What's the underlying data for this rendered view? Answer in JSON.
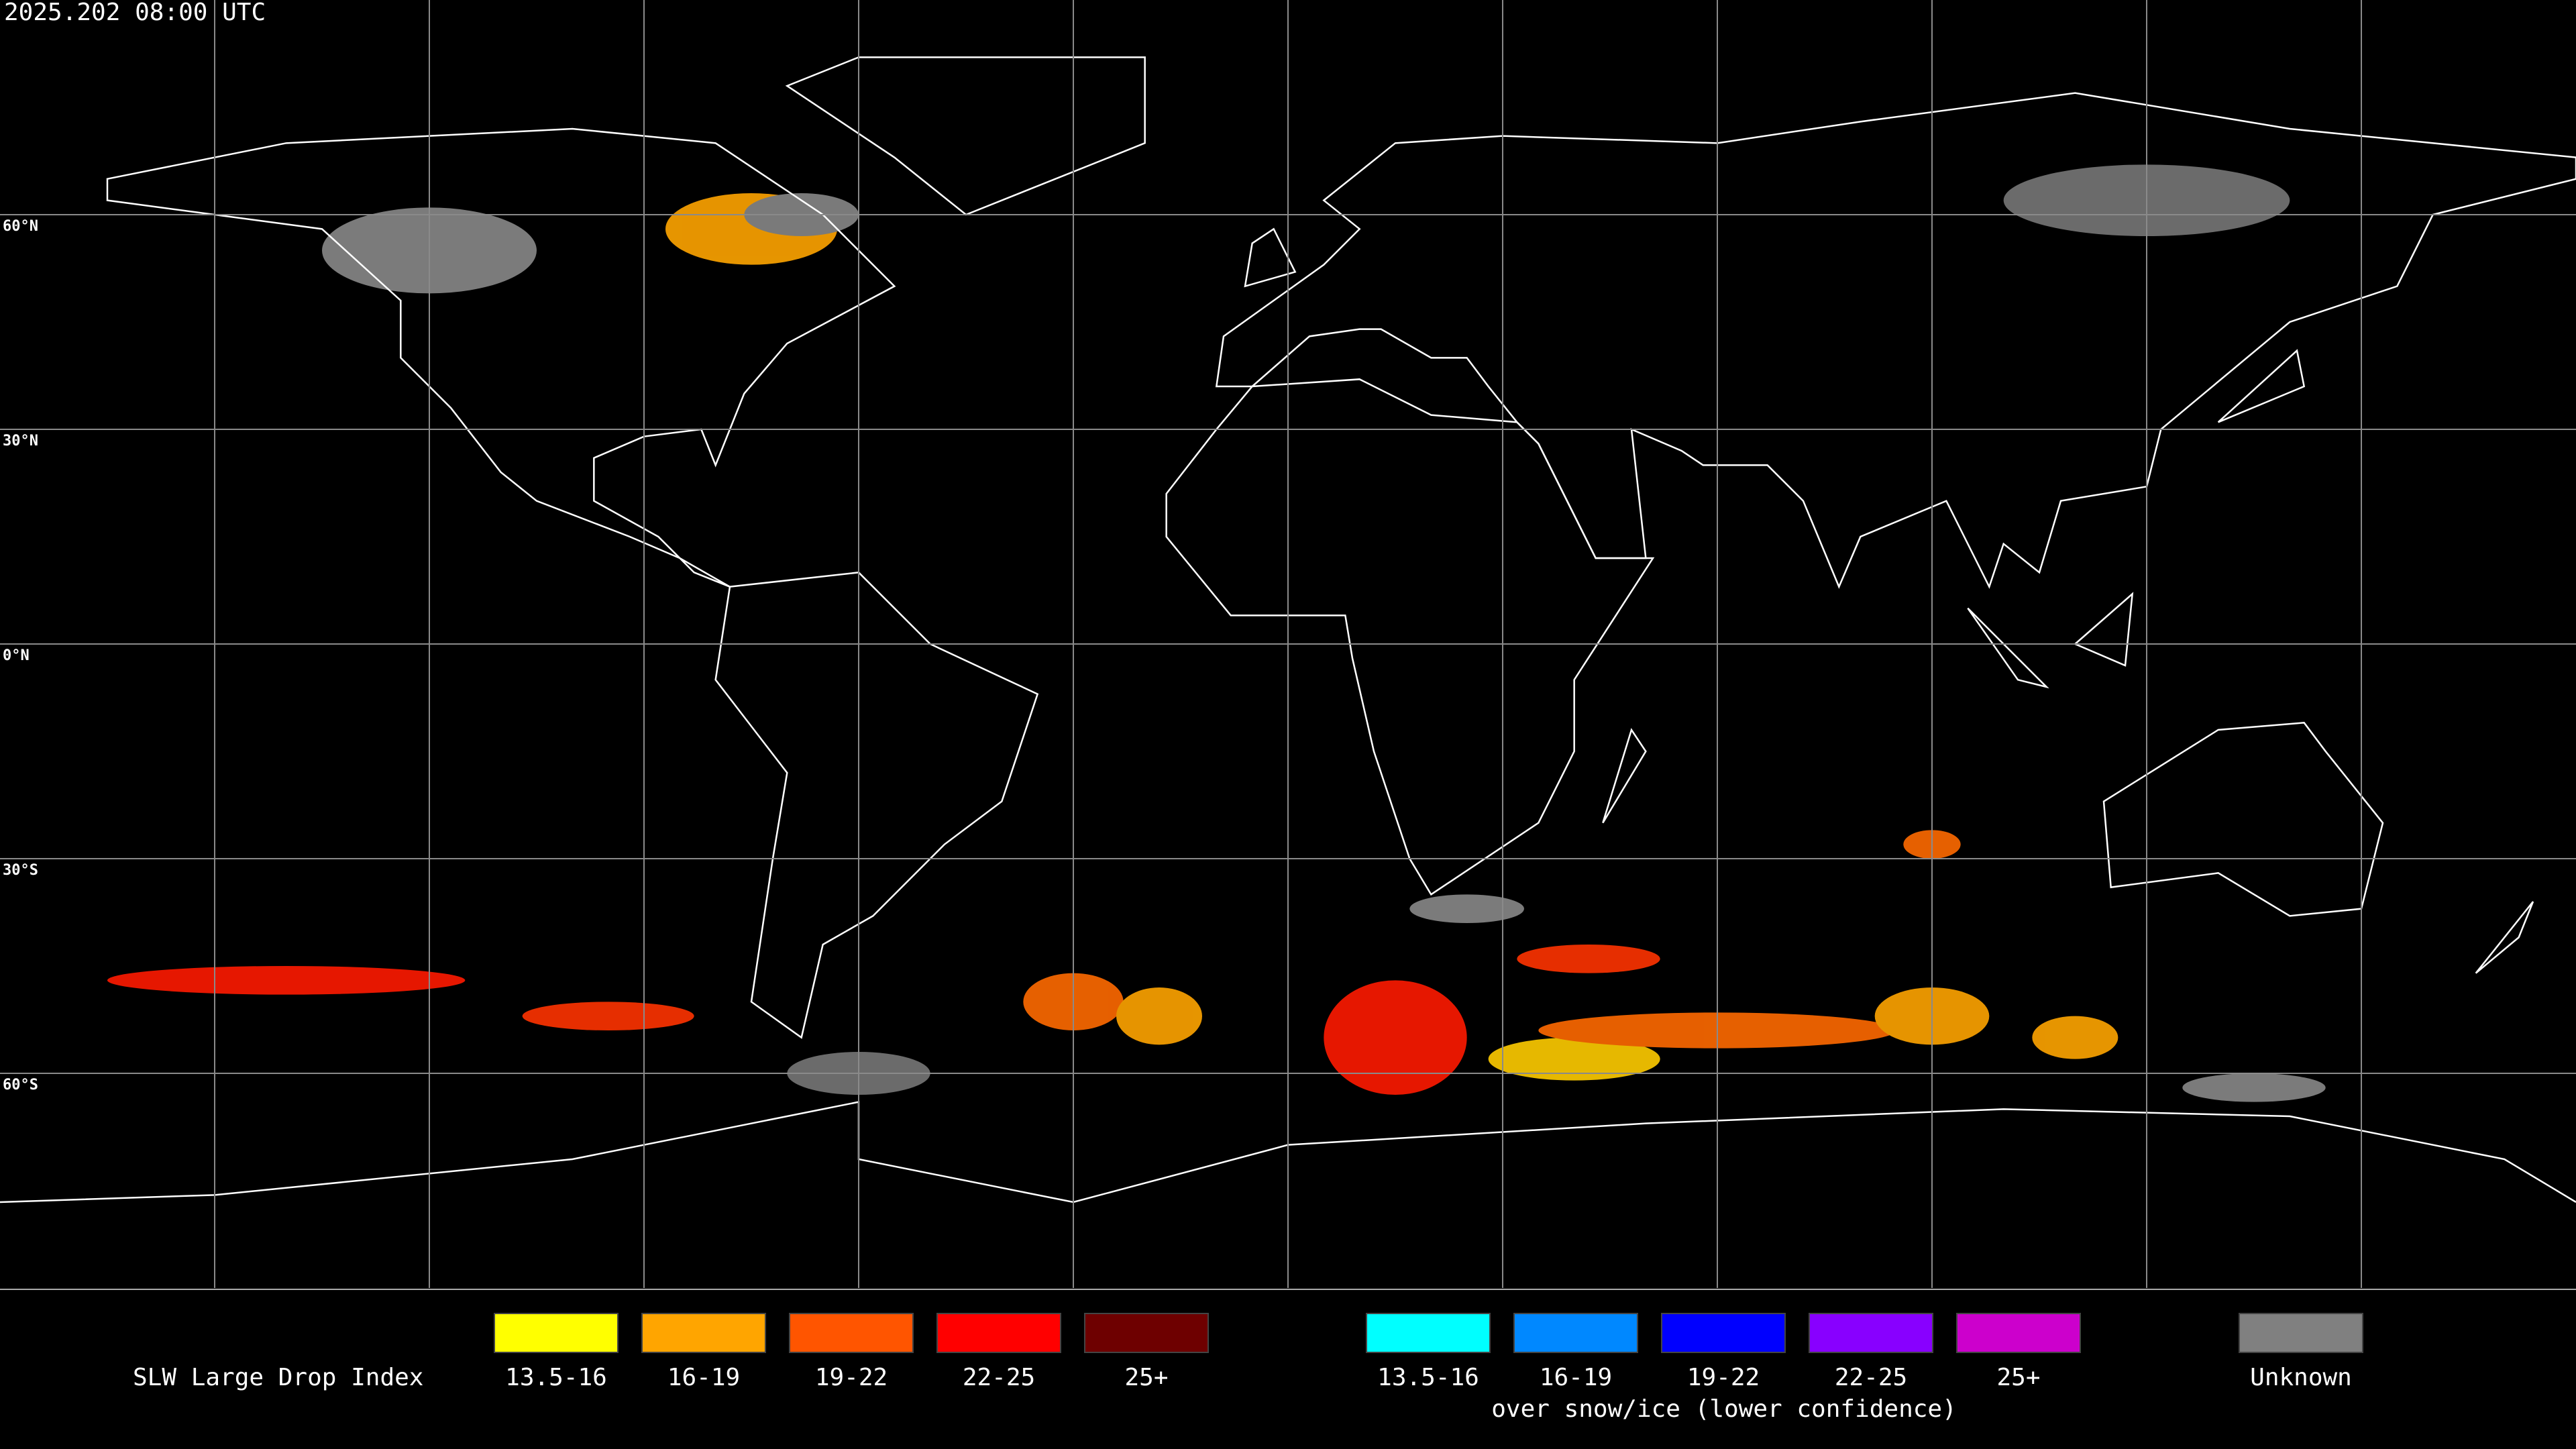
{
  "header": {
    "timestamp": "2025.202 08:00 UTC"
  },
  "map": {
    "lat_labels": [
      "60°N",
      "30°N",
      "0°N",
      "30°S",
      "60°S"
    ]
  },
  "legend": {
    "title": "SLW Large Drop Index",
    "groups": [
      {
        "items": [
          {
            "label": "13.5-16",
            "color": "#ffff00"
          },
          {
            "label": "16-19",
            "color": "#ffa500"
          },
          {
            "label": "19-22",
            "color": "#ff5500"
          },
          {
            "label": "22-25",
            "color": "#ff0000"
          },
          {
            "label": "25+",
            "color": "#6e0000"
          }
        ]
      },
      {
        "items": [
          {
            "label": "13.5-16",
            "color": "#00ffff"
          },
          {
            "label": "16-19",
            "color": "#0088ff"
          },
          {
            "label": "19-22",
            "color": "#0000ff"
          },
          {
            "label": "22-25",
            "color": "#8800ff"
          },
          {
            "label": "25+",
            "color": "#cc00cc"
          }
        ],
        "caption": "over snow/ice (lower confidence)"
      }
    ],
    "unknown": {
      "label": "Unknown",
      "color": "#808080"
    }
  }
}
